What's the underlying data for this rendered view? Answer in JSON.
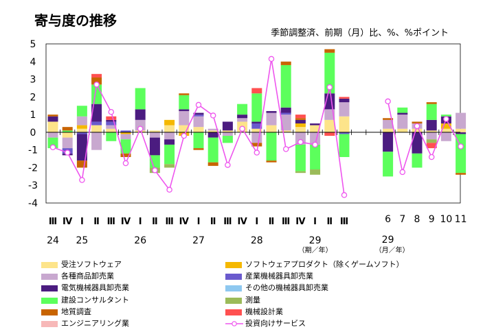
{
  "title": "寄与度の推移",
  "subtitle": "季節調整済、前期（月）比、%、%ポイント",
  "chart_data": {
    "type": "bar",
    "subtype": "stacked bar with line",
    "ylim": [
      -4,
      5
    ],
    "yticks": [
      5,
      4,
      3,
      2,
      1,
      0,
      -1,
      -2,
      -3,
      -4
    ],
    "quarter_labels": [
      "Ⅲ",
      "Ⅳ",
      "Ⅰ",
      "Ⅱ",
      "Ⅲ",
      "Ⅳ",
      "Ⅰ",
      "Ⅱ",
      "Ⅲ",
      "Ⅳ",
      "Ⅰ",
      "Ⅱ",
      "Ⅲ",
      "Ⅳ",
      "Ⅰ",
      "Ⅱ",
      "Ⅲ",
      "Ⅳ",
      "Ⅰ",
      "Ⅱ",
      "Ⅲ"
    ],
    "year_labels": [
      {
        "label": "24",
        "slot": 0
      },
      {
        "label": "25",
        "slot": 2
      },
      {
        "label": "26",
        "slot": 6
      },
      {
        "label": "27",
        "slot": 10
      },
      {
        "label": "28",
        "slot": 14
      },
      {
        "label": "29",
        "slot": 18
      }
    ],
    "quarter_unit_label": "（期／年）",
    "month_labels": [
      "6",
      "7",
      "8",
      "9",
      "10",
      "11"
    ],
    "month_year_label": "29",
    "month_unit_label": "（月／年）",
    "series": [
      {
        "name": "受注ソフトウェア",
        "color": "#FDE48A",
        "values": [
          0.6,
          -0.3,
          0.2,
          0.4,
          0.2,
          0,
          0.1,
          0.1,
          0.4,
          0.4,
          0.3,
          0.1,
          0.1,
          0.6,
          0.2,
          0.4,
          0.1,
          0.3,
          0.4,
          0.7,
          0.9,
          0.2,
          0.2,
          0.2,
          0.1,
          0.2,
          0.2
        ]
      },
      {
        "name": "ソフトウェアプロダクト（除くゲームソフト）",
        "color": "#F5B800",
        "values": [
          0,
          0,
          0.2,
          0,
          0,
          -0.1,
          0,
          0,
          0.3,
          -0.2,
          0,
          0,
          0,
          0,
          0,
          0,
          0,
          0.2,
          0,
          0,
          0,
          0,
          0,
          0,
          0,
          0.3,
          0
        ]
      },
      {
        "name": "各種商品卸売業",
        "color": "#C8A8CF",
        "values": [
          -0.3,
          -0.6,
          0.5,
          -1,
          0.2,
          -0.3,
          0.6,
          -0.3,
          -0.4,
          0.8,
          0.6,
          0.1,
          -0.2,
          0.2,
          -0.6,
          0.7,
          0.9,
          -0.7,
          -0.7,
          0.6,
          0.8,
          0.5,
          0.8,
          0.3,
          -0.4,
          -0.5,
          0.9
        ]
      },
      {
        "name": "産業機械器具卸売業",
        "color": "#6A5ACD",
        "values": [
          0,
          -0.3,
          -0.1,
          0.2,
          0.2,
          0.1,
          0,
          0,
          0,
          0,
          0.1,
          0,
          0,
          0,
          0.3,
          0,
          0.1,
          0,
          0,
          0,
          -0.1,
          0,
          0,
          0,
          0,
          0,
          0
        ]
      },
      {
        "name": "電気機械器具卸売業",
        "color": "#4B1C80",
        "values": [
          0.3,
          -0.1,
          -1.5,
          1,
          0.1,
          0,
          0.6,
          -1,
          -0.3,
          0.1,
          0.1,
          -0.3,
          0.5,
          0.2,
          0.1,
          0.1,
          0.3,
          0.2,
          0.1,
          0.9,
          0.2,
          -1.1,
          0.1,
          -1.2,
          0.6,
          0.4,
          -0.1
        ]
      },
      {
        "name": "その他の機械器具卸売業",
        "color": "#8EC8F0",
        "values": [
          0,
          0,
          0,
          0,
          0,
          0,
          0,
          0,
          0,
          0,
          0,
          0,
          0,
          0,
          0,
          0,
          0,
          0,
          0,
          0,
          0,
          0,
          0,
          0,
          0,
          0,
          0
        ]
      },
      {
        "name": "建設コンサルタント",
        "color": "#5CFF5C",
        "values": [
          -0.6,
          0.1,
          0.6,
          1.1,
          -0.5,
          -0.8,
          1.2,
          -0.7,
          -1.1,
          0.8,
          -0.9,
          -1.4,
          -0.4,
          0.6,
          1.6,
          -1.6,
          2.4,
          -1.5,
          -1.4,
          2.3,
          -1.3,
          -1.4,
          0.3,
          -0.8,
          0.9,
          0.1,
          -2.2
        ]
      },
      {
        "name": "測量",
        "color": "#9BBB59",
        "values": [
          0,
          0,
          0,
          0,
          0,
          0,
          0,
          -0.3,
          -0.2,
          0,
          0,
          0,
          0,
          0,
          0,
          0,
          0,
          -0.1,
          -0.3,
          0,
          0,
          0,
          0,
          0,
          -0.2,
          0,
          0
        ]
      },
      {
        "name": "地質調査",
        "color": "#C86400",
        "values": [
          0.1,
          0.2,
          -0.4,
          0.4,
          0,
          -0.2,
          0,
          0,
          0,
          0.1,
          -0.1,
          -0.2,
          0,
          0,
          -0.2,
          -0.1,
          0.2,
          0.1,
          0,
          0.2,
          0,
          0.1,
          0,
          0.1,
          0.1,
          0,
          -0.1
        ]
      },
      {
        "name": "機械設計業",
        "color": "#FF5050",
        "values": [
          0,
          0,
          0,
          0.2,
          0.2,
          0,
          0,
          0,
          0,
          0,
          0,
          0,
          0,
          0,
          0.3,
          0,
          0,
          0.2,
          0,
          -0.2,
          0.1,
          0,
          0,
          0,
          -0.3,
          0,
          0
        ]
      },
      {
        "name": "エンジニアリング業",
        "color": "#F7B8B8",
        "values": [
          0,
          0,
          0,
          0,
          0,
          0,
          0,
          0,
          0,
          0,
          0,
          0,
          0,
          0,
          0,
          0,
          0,
          0,
          0,
          0,
          0,
          0,
          0,
          0,
          0,
          0,
          0
        ]
      }
    ],
    "line": {
      "name": "投資向けサービス",
      "color": "#EE55EE",
      "values": [
        -0.85,
        -1.15,
        -2.7,
        2.7,
        1.15,
        -1.75,
        0.2,
        -2.15,
        -3.25,
        -0.2,
        1.55,
        0.95,
        -1.85,
        0.2,
        -1.15,
        4.15,
        -0.95,
        -0.55,
        -0.7,
        2.55,
        -3.55,
        1.75,
        -2.25,
        0.35,
        -1.4,
        0.75,
        -0.8
      ]
    }
  },
  "legend": {
    "left_column": [
      "受注ソフトウェア",
      "各種商品卸売業",
      "電気機械器具卸売業",
      "建設コンサルタント",
      "地質調査",
      "エンジニアリング業"
    ],
    "right_column": [
      "ソフトウェアプロダクト（除くゲームソフト）",
      "産業機械器具卸売業",
      "その他の機械器具卸売業",
      "測量",
      "機械設計業",
      "投資向けサービス"
    ]
  }
}
